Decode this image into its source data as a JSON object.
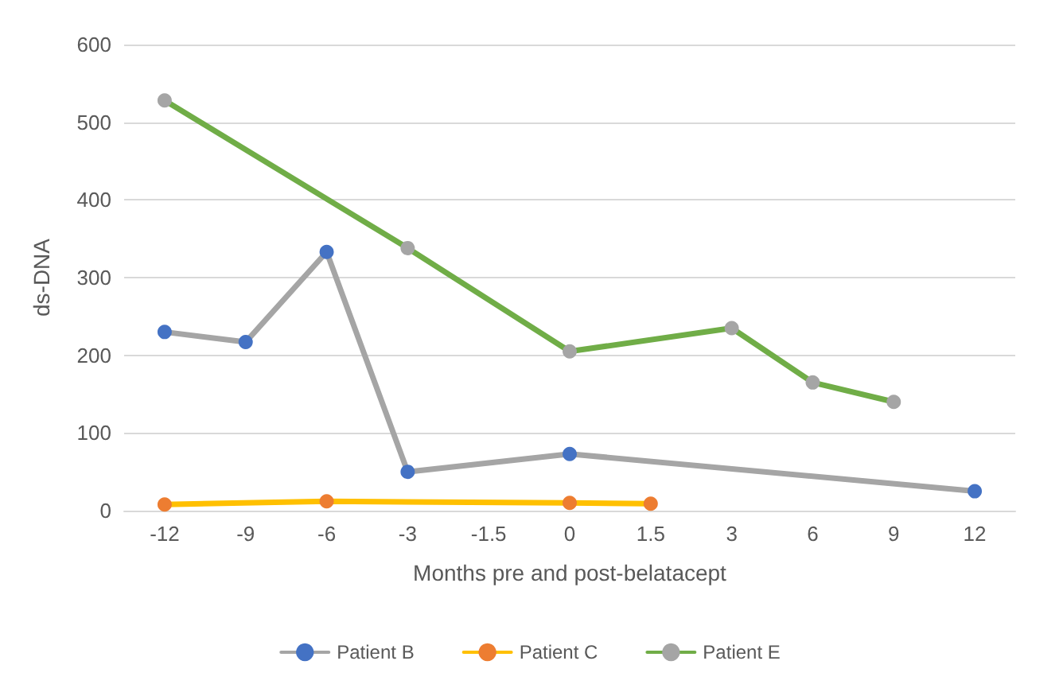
{
  "chart_data": {
    "type": "line",
    "xlabel": "Months pre and post-belatacept",
    "ylabel": "ds-DNA",
    "categories": [
      "-12",
      "-9",
      "-6",
      "-3",
      "-1.5",
      "0",
      "1.5",
      "3",
      "6",
      "9",
      "12"
    ],
    "series": [
      {
        "name": "Patient B",
        "color": "#a5a5a5",
        "colors": [
          "#4472c4",
          "#4472c4",
          "#4472c4",
          "#4472c4",
          null,
          "#4472c4",
          null,
          null,
          null,
          null,
          "#4472c4"
        ],
        "values": [
          230,
          217,
          333,
          50,
          null,
          73,
          null,
          null,
          null,
          null,
          25
        ]
      },
      {
        "name": "Patient C",
        "color": "#ffc000",
        "colors": [
          "#ed7d31",
          null,
          "#ed7d31",
          null,
          null,
          "#ed7d31",
          "#ed7d31",
          null,
          null,
          null,
          null
        ],
        "values": [
          8,
          null,
          12,
          null,
          null,
          10,
          9,
          null,
          null,
          null,
          null
        ]
      },
      {
        "name": "Patient E",
        "color": "#70ad47",
        "colors": [
          "#a5a5a5",
          null,
          null,
          "#a5a5a5",
          null,
          "#a5a5a5",
          null,
          "#a5a5a5",
          "#a5a5a5",
          "#a5a5a5",
          null
        ],
        "values": [
          528,
          null,
          null,
          338,
          null,
          205,
          null,
          235,
          165,
          140,
          null
        ]
      }
    ],
    "ylim": [
      0,
      600
    ],
    "yticks": [
      0,
      100,
      200,
      300,
      400,
      500,
      600
    ],
    "grid": "y",
    "legend": "bottom",
    "marker": "circle",
    "line_style": "solid"
  }
}
